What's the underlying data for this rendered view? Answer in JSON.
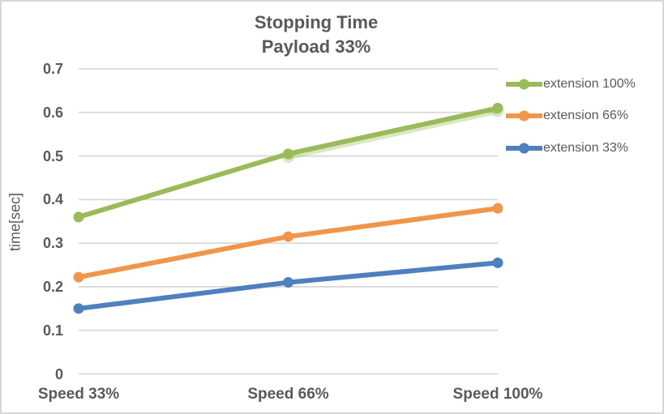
{
  "colors": {
    "background": "#FFFFFF",
    "border": "#D7D7D7",
    "gridline": "#D9D9D9",
    "text": "#595959"
  },
  "chart_data": {
    "type": "line",
    "title": "Stopping Time",
    "subtitle": "Payload 33%",
    "xlabel": "",
    "ylabel": "time[sec]",
    "categories": [
      "Speed 33%",
      "Speed 66%",
      "Speed 100%"
    ],
    "series": [
      {
        "name": "extension 100%",
        "color": "#9ABB59",
        "values": [
          0.36,
          0.505,
          0.61
        ]
      },
      {
        "name": "extension 66%",
        "color": "#F0964B",
        "values": [
          0.222,
          0.315,
          0.38
        ]
      },
      {
        "name": "extension 33%",
        "color": "#4E80BD",
        "values": [
          0.15,
          0.21,
          0.255
        ]
      }
    ],
    "overlap_series": {
      "name": "extension 100% duplicate trace",
      "color": "#9ABB59",
      "opacity": 0.35,
      "x_indices": [
        1,
        2
      ],
      "values": [
        0.498,
        0.603
      ]
    },
    "ylim": [
      0,
      0.7
    ],
    "ytick_step": 0.1,
    "yticks": [
      "0",
      "0.1",
      "0.2",
      "0.3",
      "0.4",
      "0.5",
      "0.6",
      "0.7"
    ],
    "grid": true,
    "legend_position": "right"
  }
}
